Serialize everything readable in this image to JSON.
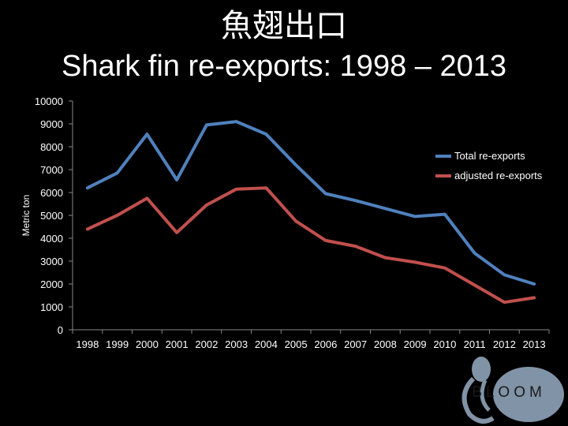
{
  "slide": {
    "title_zh": "魚翅出口",
    "title_en": "Shark fin re-exports: 1998 – 2013"
  },
  "logo": {
    "text": "BLOOM",
    "icon": "octopus-logo-icon"
  },
  "chart_data": {
    "type": "line",
    "title": "",
    "xlabel": "",
    "ylabel": "Metric ton",
    "categories": [
      "1998",
      "1999",
      "2000",
      "2001",
      "2002",
      "2003",
      "2004",
      "2005",
      "2006",
      "2007",
      "2008",
      "2009",
      "2010",
      "2011",
      "2012",
      "2013"
    ],
    "ylim": [
      0,
      10000
    ],
    "yticks": [
      "10000",
      "9000",
      "8000",
      "7000",
      "6000",
      "5000",
      "4000",
      "3000",
      "2000",
      "1000",
      "0"
    ],
    "grid": false,
    "legend_position": "right",
    "series": [
      {
        "name": "Total re-exports",
        "color": "#4f81bd",
        "values": [
          6200,
          6850,
          8550,
          6550,
          8950,
          9100,
          8550,
          7200,
          5950,
          5650,
          5300,
          4950,
          5050,
          3350,
          2400,
          2000
        ]
      },
      {
        "name": "adjusted re-exports",
        "color": "#c0504d",
        "values": [
          4400,
          5000,
          5750,
          4250,
          5450,
          6150,
          6200,
          4750,
          3900,
          3650,
          3150,
          2950,
          2700,
          1950,
          1200,
          1400
        ]
      }
    ]
  }
}
